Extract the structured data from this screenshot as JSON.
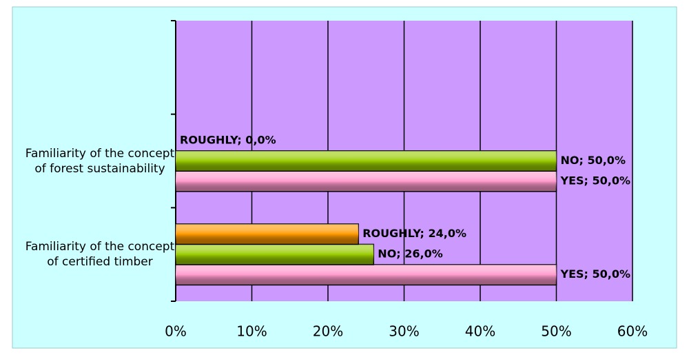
{
  "chart_data": {
    "type": "hbar",
    "categories": [
      "Familiarity of the concept of certified timber",
      "Familiarity of the concept of forest sustainability",
      null
    ],
    "series": [
      {
        "name": "YES",
        "color": "#ff99cc",
        "values": [
          50,
          50,
          null
        ],
        "value_labels": [
          "YES; 50,0%",
          "YES; 50,0%",
          null
        ]
      },
      {
        "name": "NO",
        "color": "#99cc00",
        "values": [
          26,
          50,
          null
        ],
        "value_labels": [
          "NO; 26,0%",
          "NO; 50,0%",
          null
        ]
      },
      {
        "name": "ROUGHLY",
        "color": "#ff9900",
        "values": [
          24,
          0,
          null
        ],
        "value_labels": [
          "ROUGHLY; 24,0%",
          "ROUGHLY; 0,0%",
          null
        ]
      }
    ],
    "xlim": [
      0,
      60
    ],
    "xticks": [
      {
        "value": 0,
        "label": "0%"
      },
      {
        "value": 10,
        "label": "10%"
      },
      {
        "value": 20,
        "label": "20%"
      },
      {
        "value": 30,
        "label": "30%"
      },
      {
        "value": 40,
        "label": "40%"
      },
      {
        "value": 50,
        "label": "50%"
      },
      {
        "value": 60,
        "label": "60%"
      }
    ],
    "grid": true,
    "background": "#ccffff",
    "plot_background": "#cc99ff"
  }
}
